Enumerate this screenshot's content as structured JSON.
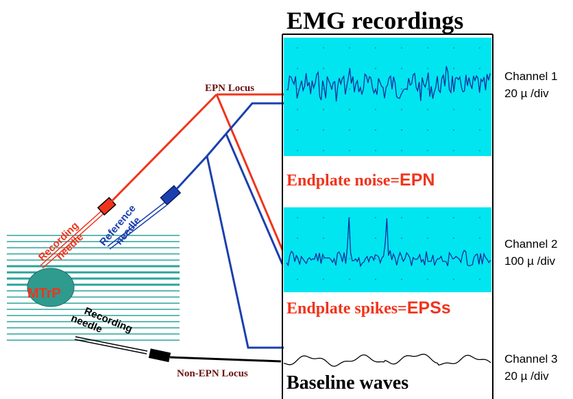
{
  "title": "EMG recordings",
  "loci": {
    "epn": "EPN Locus",
    "non_epn": "Non-EPN Locus"
  },
  "needles": {
    "recording_upper": [
      "Recording",
      "needle"
    ],
    "reference": [
      "Reference",
      "needle"
    ],
    "recording_lower": [
      "Recording",
      "needle"
    ]
  },
  "mtrp_label": "MTrP",
  "panels": {
    "epn": {
      "prefix": "Endplate noise=",
      "abbr": "EPN"
    },
    "eps": {
      "prefix": "Endplate spikes=",
      "abbr": "EPSs"
    },
    "baseline": {
      "label": "Baseline waves"
    }
  },
  "channels": [
    {
      "name": "Channel 1",
      "scale": "20 µ /div"
    },
    {
      "name": "Channel 2",
      "scale": "100 µ /div"
    },
    {
      "name": "Channel 3",
      "scale": "20 µ /div"
    }
  ],
  "colors": {
    "cyan_panel": "#00e5f0",
    "trace": "#1a2b9a",
    "red": "#f0341c",
    "blue": "#1a3fae",
    "dark_red": "#6a1212",
    "teal": "#2aa39a",
    "mtrp_fill": "#2f9a8e"
  }
}
